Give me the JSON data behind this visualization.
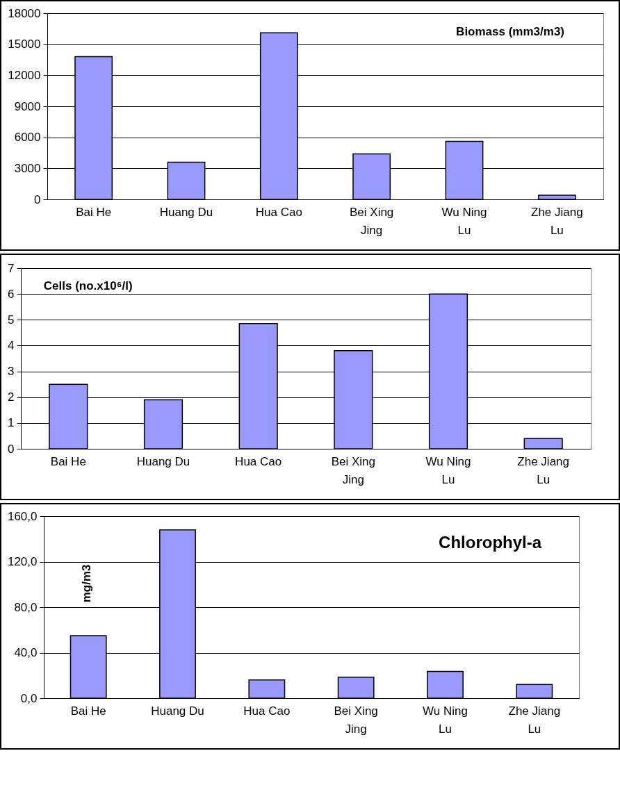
{
  "chart_data": [
    {
      "type": "bar",
      "title": "Biomass (mm3/m3)",
      "categories": [
        "Bai He",
        "Huang Du",
        "Hua Cao",
        "Bei Xing Jing",
        "Wu Ning Lu",
        "Zhe Jiang Lu"
      ],
      "values": [
        13800,
        3600,
        16100,
        4400,
        5600,
        400
      ],
      "color": "#9999ff",
      "ylim": [
        0,
        18000
      ],
      "yticks": [
        0,
        3000,
        6000,
        9000,
        12000,
        15000,
        18000
      ],
      "grid": "y"
    },
    {
      "type": "bar",
      "title": "Cells (no.x10⁶/l)",
      "categories": [
        "Bai He",
        "Huang Du",
        "Hua Cao",
        "Bei Xing Jing",
        "Wu Ning Lu",
        "Zhe Jiang Lu"
      ],
      "values": [
        2.5,
        1.9,
        4.85,
        3.8,
        6.0,
        0.4
      ],
      "color": "#9999ff",
      "ylim": [
        0,
        7
      ],
      "yticks": [
        0,
        1,
        2,
        3,
        4,
        5,
        6,
        7
      ],
      "grid": "y"
    },
    {
      "type": "bar",
      "title": "Chlorophyl-a",
      "ylabel": "mg/m3",
      "categories": [
        "Bai He",
        "Huang Du",
        "Hua Cao",
        "Bei Xing Jing",
        "Wu Ning Lu",
        "Zhe Jiang Lu"
      ],
      "values": [
        55,
        148,
        16,
        18.5,
        23.5,
        12
      ],
      "color": "#9999ff",
      "ylim": [
        0,
        160
      ],
      "yticks": [
        {
          "value": 0,
          "label": "0,0"
        },
        {
          "value": 40,
          "label": "40,0"
        },
        {
          "value": 80,
          "label": "80,0"
        },
        {
          "value": 120,
          "label": "120,0"
        },
        {
          "value": 160,
          "label": "160,0"
        }
      ],
      "grid": "y"
    }
  ]
}
